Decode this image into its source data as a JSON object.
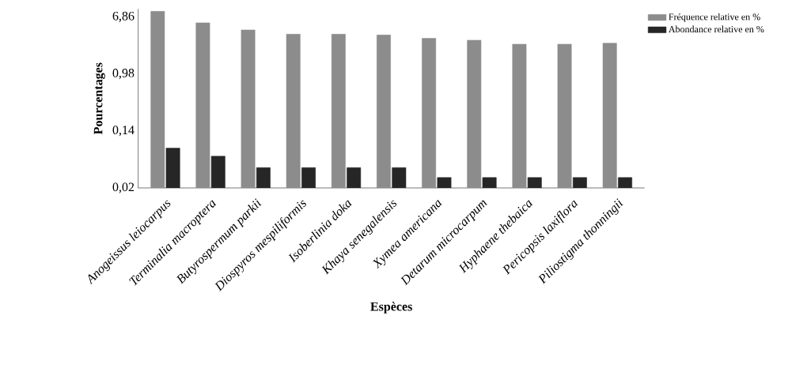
{
  "chart_data": {
    "type": "bar",
    "xlabel": "Espèces",
    "ylabel": "Pourcentages",
    "log": "y",
    "legend": "top right",
    "categories": [
      "Anogeissus leiocarpus",
      "Terminalia macroptera",
      "Butyrospermum  parkii",
      "Diospyros mespiliformis",
      "Isoberlinia doka",
      "Khaya senegalensis",
      "Xymea americana",
      "Detarum microcarpum",
      "Hyphaene thebaica",
      "Pericopsis laxiflora",
      "Piliostigma thonningii"
    ],
    "series": [
      {
        "name": "Fréquence relative en %",
        "color": "#8c8c8c",
        "values": [
          8.3,
          5.6,
          4.4,
          3.8,
          3.8,
          3.7,
          3.3,
          3.1,
          2.7,
          2.7,
          2.8
        ]
      },
      {
        "name": "Abondance relative en  %",
        "color": "#262626",
        "values": [
          0.078,
          0.059,
          0.04,
          0.04,
          0.04,
          0.04,
          0.0285,
          0.0285,
          0.0285,
          0.0285,
          0.0285
        ]
      }
    ],
    "ylim": [
      0.02,
      9
    ],
    "yticks": [
      {
        "value": 0.02,
        "label": "0,02"
      },
      {
        "value": 0.14,
        "label": "0,14"
      },
      {
        "value": 0.98,
        "label": "0,98"
      },
      {
        "value": 6.86,
        "label": "6,86"
      }
    ]
  }
}
